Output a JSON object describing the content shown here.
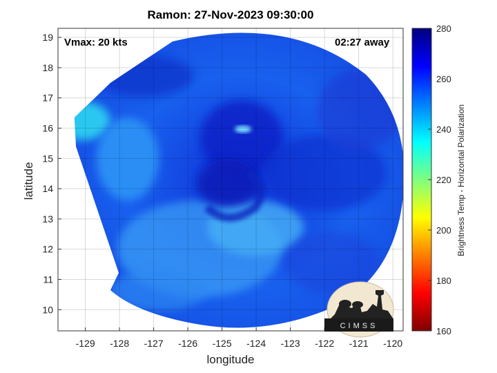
{
  "title": "Ramon: 27-Nov-2023 09:30:00",
  "vmax_text": "Vmax: 20 kts",
  "away_text": "02:27 away",
  "logo_text": "CIMSS",
  "colorbar_label": "Brightness Temp - Horizontal Polarization",
  "map": {
    "xlabel": "longitude",
    "ylabel": "latitude",
    "xlim": [
      -129.8,
      -119.7
    ],
    "ylim": [
      9.3,
      19.3
    ],
    "xticks": [
      -129,
      -128,
      -127,
      -126,
      -125,
      -124,
      -123,
      -122,
      -121,
      -120
    ],
    "yticks": [
      10,
      11,
      12,
      13,
      14,
      15,
      16,
      17,
      18,
      19
    ],
    "grid": true,
    "storm_center": {
      "lon": -124.6,
      "lat": 13.9
    }
  },
  "colorbar": {
    "min": 160,
    "max": 280,
    "ticks": [
      160,
      180,
      200,
      220,
      240,
      260,
      280
    ],
    "colors": [
      "#7f0000",
      "#ff0000",
      "#ff7f00",
      "#ffff00",
      "#7fff7f",
      "#00ffff",
      "#007fff",
      "#0000ff",
      "#00007f"
    ]
  }
}
